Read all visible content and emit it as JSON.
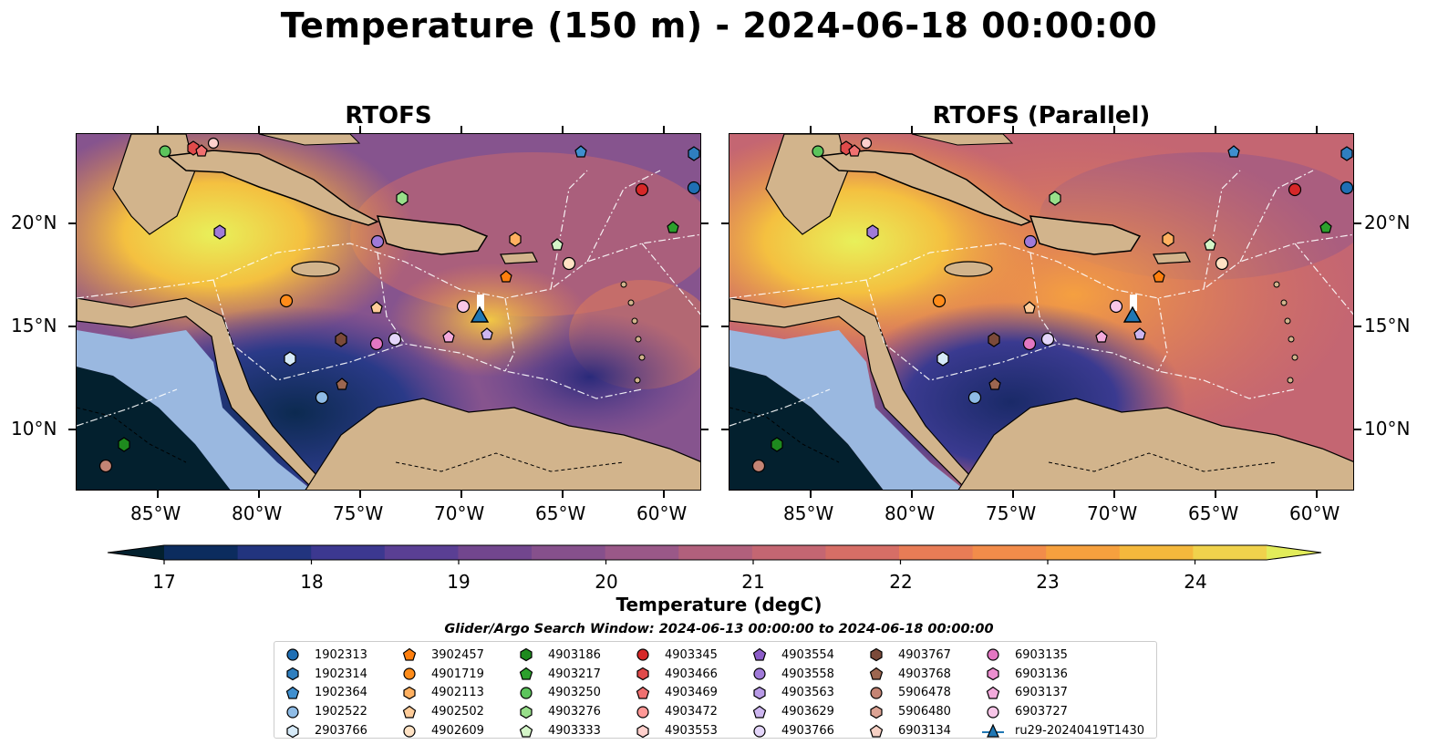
{
  "title": "Temperature (150 m) - 2024-06-18 00:00:00",
  "panels": [
    {
      "title": "RTOFS"
    },
    {
      "title": "RTOFS (Parallel)"
    }
  ],
  "axes": {
    "lon_ticks": [
      "85°W",
      "80°W",
      "75°W",
      "70°W",
      "65°W",
      "60°W"
    ],
    "lat_ticks": [
      "20°N",
      "15°N",
      "10°N"
    ]
  },
  "colorbar": {
    "label": "Temperature (degC)",
    "ticks": [
      "17",
      "18",
      "19",
      "20",
      "21",
      "22",
      "23",
      "24"
    ],
    "colors": [
      "#03202e",
      "#0c2c5e",
      "#22347e",
      "#3c3890",
      "#5a3f94",
      "#72468e",
      "#86508c",
      "#9a5888",
      "#b1607c",
      "#c46672",
      "#d66e66",
      "#e87c56",
      "#f28c4a",
      "#f6a03e",
      "#f4b83c",
      "#f0d24c",
      "#e2ec5a"
    ]
  },
  "search_window": "Glider/Argo Search Window: 2024-06-13 00:00:00 to 2024-06-18 00:00:00",
  "legend": [
    {
      "label": "1902313",
      "shape": "circle",
      "color": "#1f6fb4"
    },
    {
      "label": "1902314",
      "shape": "hexagon",
      "color": "#2f7fbf"
    },
    {
      "label": "1902364",
      "shape": "pentagon",
      "color": "#3f8fcf"
    },
    {
      "label": "1902522",
      "shape": "circle",
      "color": "#8fbce6"
    },
    {
      "label": "2903766",
      "shape": "hexagon",
      "color": "#d6eaf8"
    },
    {
      "label": "3902457",
      "shape": "pentagon",
      "color": "#ff7f0e"
    },
    {
      "label": "4901719",
      "shape": "circle",
      "color": "#ff8c1a"
    },
    {
      "label": "4902113",
      "shape": "hexagon",
      "color": "#ffb060"
    },
    {
      "label": "4902502",
      "shape": "pentagon",
      "color": "#ffcc99"
    },
    {
      "label": "4902609",
      "shape": "circle",
      "color": "#ffe2c4"
    },
    {
      "label": "4903186",
      "shape": "hexagon",
      "color": "#1e8a1e"
    },
    {
      "label": "4903217",
      "shape": "pentagon",
      "color": "#2ca02c"
    },
    {
      "label": "4903250",
      "shape": "circle",
      "color": "#5cc45c"
    },
    {
      "label": "4903276",
      "shape": "hexagon",
      "color": "#98df8a"
    },
    {
      "label": "4903333",
      "shape": "pentagon",
      "color": "#d4f5c8"
    },
    {
      "label": "4903345",
      "shape": "circle",
      "color": "#d62728"
    },
    {
      "label": "4903466",
      "shape": "hexagon",
      "color": "#e04a4a"
    },
    {
      "label": "4903469",
      "shape": "pentagon",
      "color": "#f07070"
    },
    {
      "label": "4903472",
      "shape": "circle",
      "color": "#ff9896"
    },
    {
      "label": "4903553",
      "shape": "hexagon",
      "color": "#ffd0cc"
    },
    {
      "label": "4903554",
      "shape": "pentagon",
      "color": "#8c5cc8"
    },
    {
      "label": "4903558",
      "shape": "circle",
      "color": "#a07ad8"
    },
    {
      "label": "4903563",
      "shape": "hexagon",
      "color": "#b89ae6"
    },
    {
      "label": "4903629",
      "shape": "pentagon",
      "color": "#cdb6f0"
    },
    {
      "label": "4903766",
      "shape": "circle",
      "color": "#e4d6fa"
    },
    {
      "label": "4903767",
      "shape": "hexagon",
      "color": "#7b4a3a"
    },
    {
      "label": "4903768",
      "shape": "pentagon",
      "color": "#9c6650"
    },
    {
      "label": "5906478",
      "shape": "circle",
      "color": "#c48474"
    },
    {
      "label": "5906480",
      "shape": "hexagon",
      "color": "#dca394"
    },
    {
      "label": "6903134",
      "shape": "pentagon",
      "color": "#f6d0c4"
    },
    {
      "label": "6903135",
      "shape": "circle",
      "color": "#e377c2"
    },
    {
      "label": "6903136",
      "shape": "hexagon",
      "color": "#ec8fd0"
    },
    {
      "label": "6903137",
      "shape": "pentagon",
      "color": "#f3aadc"
    },
    {
      "label": "6903727",
      "shape": "circle",
      "color": "#f8c6e8"
    },
    {
      "label": "ru29-20240419T1430",
      "shape": "triangle-line",
      "color": "#1f77b4"
    }
  ]
}
